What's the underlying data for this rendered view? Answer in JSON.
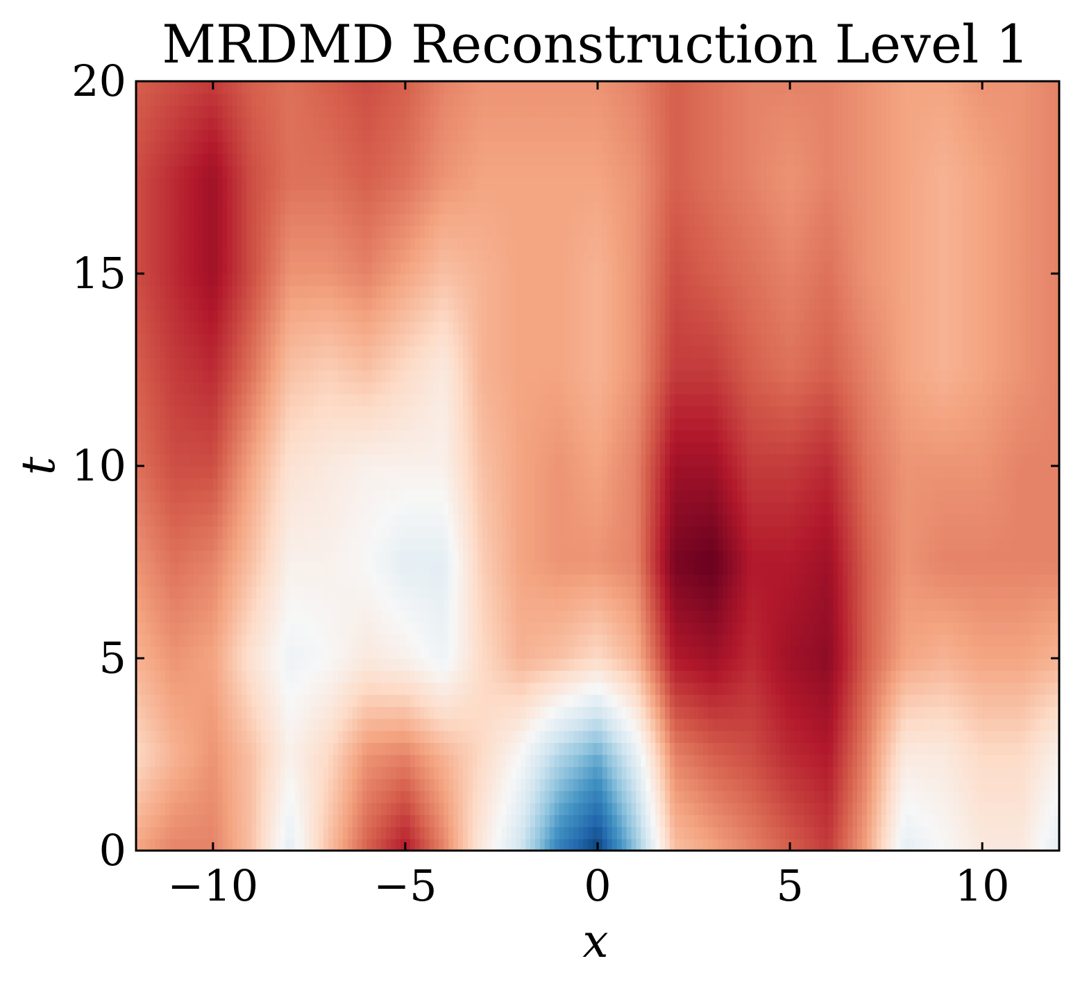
{
  "chart_data": {
    "type": "heatmap",
    "title": "MRDMD Reconstruction Level 1",
    "xlabel": "x",
    "ylabel": "t",
    "xlim": [
      -12,
      12
    ],
    "ylim": [
      0,
      20
    ],
    "xticks": [
      -10,
      -5,
      0,
      5,
      10
    ],
    "yticks": [
      0,
      5,
      10,
      15,
      20
    ],
    "xtick_labels": [
      "−10",
      "−5",
      "0",
      "5",
      "10"
    ],
    "ytick_labels": [
      "0",
      "5",
      "10",
      "15",
      "20"
    ],
    "colormap": "RdBu_r",
    "value_range": [
      -1,
      1
    ],
    "colorbar": false,
    "grid": false,
    "x": [
      -12,
      -11,
      -10,
      -9,
      -8,
      -7,
      -6,
      -5,
      -4,
      -3,
      -2,
      -1,
      0,
      1,
      2,
      3,
      4,
      5,
      6,
      7,
      8,
      9,
      10,
      11,
      12
    ],
    "t": [
      0,
      2.5,
      5,
      7.5,
      10,
      12.5,
      15,
      17.5,
      20
    ],
    "z": [
      [
        0.4,
        0.5,
        0.5,
        0.3,
        -0.1,
        0.3,
        0.6,
        0.8,
        0.5,
        0.1,
        -0.2,
        -0.7,
        -0.95,
        -0.4,
        0.3,
        0.4,
        0.5,
        0.6,
        0.7,
        0.4,
        -0.1,
        0.0,
        0.1,
        0.1,
        -0.1
      ],
      [
        0.2,
        0.35,
        0.45,
        0.3,
        0.05,
        0.2,
        0.45,
        0.5,
        0.35,
        0.2,
        0.0,
        -0.3,
        -0.5,
        -0.1,
        0.5,
        0.6,
        0.65,
        0.75,
        0.8,
        0.5,
        0.1,
        0.1,
        0.2,
        0.2,
        0.05
      ],
      [
        0.35,
        0.45,
        0.4,
        0.15,
        -0.05,
        0.0,
        0.1,
        0.05,
        -0.05,
        0.2,
        0.35,
        0.3,
        0.2,
        0.35,
        0.8,
        0.85,
        0.75,
        0.85,
        0.9,
        0.6,
        0.4,
        0.35,
        0.4,
        0.4,
        0.35
      ],
      [
        0.45,
        0.55,
        0.5,
        0.3,
        0.05,
        0.05,
        0.0,
        -0.1,
        -0.1,
        0.25,
        0.4,
        0.45,
        0.45,
        0.5,
        0.95,
        1.0,
        0.8,
        0.8,
        0.85,
        0.6,
        0.45,
        0.5,
        0.5,
        0.5,
        0.5
      ],
      [
        0.55,
        0.65,
        0.65,
        0.4,
        0.15,
        0.1,
        0.05,
        0.05,
        0.05,
        0.3,
        0.4,
        0.45,
        0.4,
        0.5,
        0.85,
        0.85,
        0.7,
        0.7,
        0.75,
        0.55,
        0.45,
        0.45,
        0.45,
        0.5,
        0.5
      ],
      [
        0.6,
        0.7,
        0.75,
        0.55,
        0.3,
        0.25,
        0.3,
        0.2,
        0.1,
        0.35,
        0.4,
        0.4,
        0.35,
        0.45,
        0.7,
        0.7,
        0.6,
        0.55,
        0.6,
        0.5,
        0.4,
        0.35,
        0.4,
        0.45,
        0.5
      ],
      [
        0.65,
        0.75,
        0.85,
        0.65,
        0.45,
        0.45,
        0.5,
        0.4,
        0.3,
        0.35,
        0.4,
        0.4,
        0.35,
        0.45,
        0.65,
        0.6,
        0.55,
        0.5,
        0.55,
        0.45,
        0.4,
        0.35,
        0.4,
        0.45,
        0.5
      ],
      [
        0.65,
        0.75,
        0.85,
        0.65,
        0.55,
        0.55,
        0.6,
        0.55,
        0.45,
        0.4,
        0.4,
        0.4,
        0.4,
        0.45,
        0.6,
        0.55,
        0.5,
        0.45,
        0.5,
        0.45,
        0.4,
        0.35,
        0.4,
        0.45,
        0.5
      ],
      [
        0.6,
        0.65,
        0.7,
        0.6,
        0.55,
        0.6,
        0.65,
        0.6,
        0.5,
        0.45,
        0.45,
        0.45,
        0.45,
        0.5,
        0.6,
        0.55,
        0.5,
        0.5,
        0.5,
        0.45,
        0.4,
        0.4,
        0.45,
        0.45,
        0.5
      ]
    ]
  }
}
